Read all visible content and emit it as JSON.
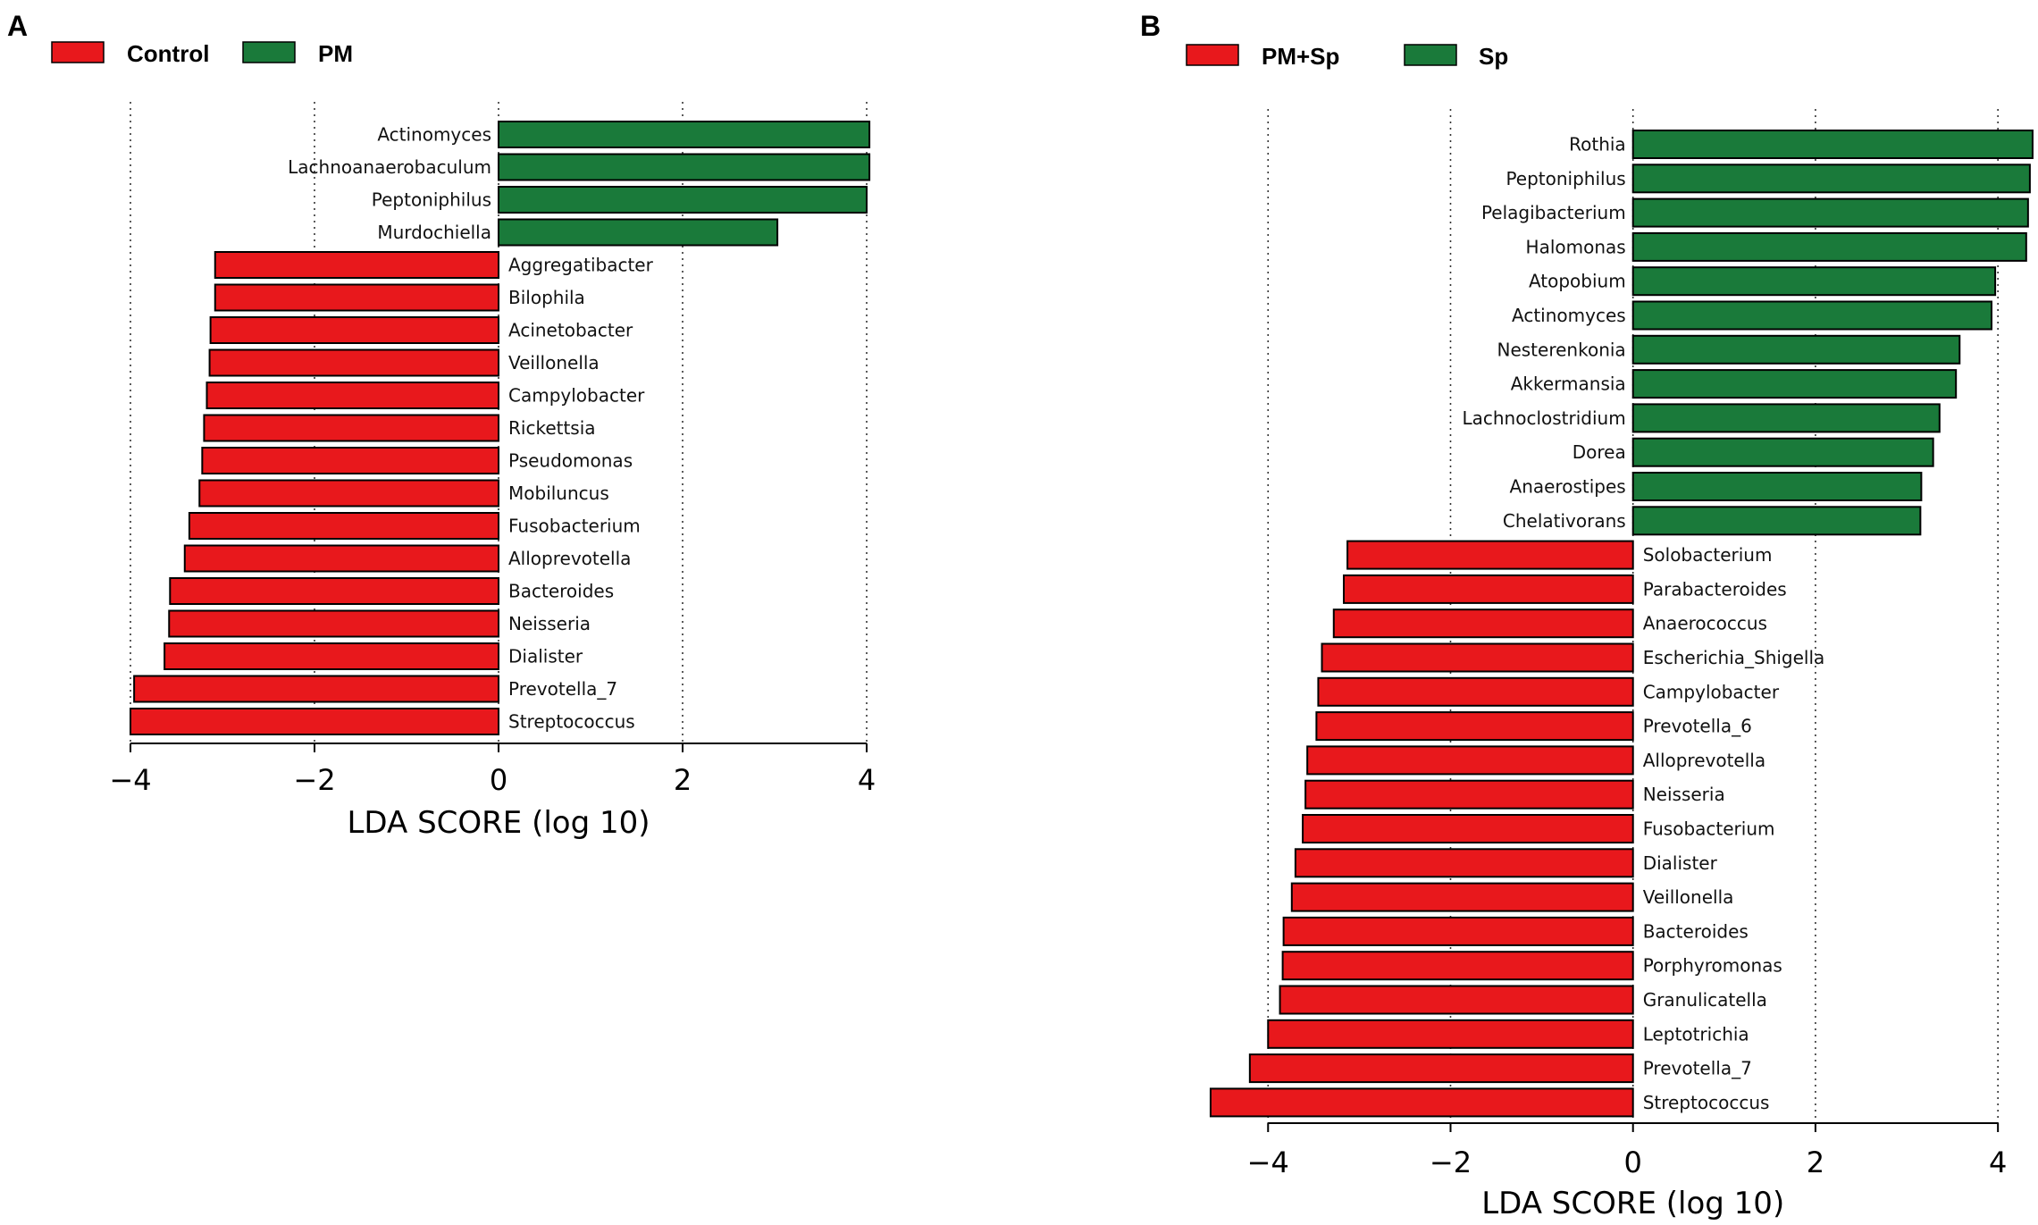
{
  "colors": {
    "red": "#e8181c",
    "green": "#1a7a3a",
    "edge": "#000000"
  },
  "chart_data": [
    {
      "type": "bar",
      "orientation": "horizontal",
      "panel_label": "A",
      "legend": [
        "Control",
        "PM"
      ],
      "series_colors": {
        "Control": "#e8181c",
        "PM": "#1a7a3a"
      },
      "xlabel": "LDA SCORE (log 10)",
      "xlim": [
        -4,
        4
      ],
      "xticks": [
        -4,
        -2,
        0,
        2,
        4
      ],
      "xtick_labels": [
        "−4",
        "−2",
        "0",
        "2",
        "4"
      ],
      "grid": "vertical dotted",
      "bars": [
        {
          "name": "Actinomyces",
          "value": 4.03,
          "group": "PM"
        },
        {
          "name": "Lachnoanaerobaculum",
          "value": 4.03,
          "group": "PM"
        },
        {
          "name": "Peptoniphilus",
          "value": 4.0,
          "group": "PM"
        },
        {
          "name": "Murdochiella",
          "value": 3.03,
          "group": "PM"
        },
        {
          "name": "Aggregatibacter",
          "value": -3.08,
          "group": "Control"
        },
        {
          "name": "Bilophila",
          "value": -3.08,
          "group": "Control"
        },
        {
          "name": "Acinetobacter",
          "value": -3.13,
          "group": "Control"
        },
        {
          "name": "Veillonella",
          "value": -3.14,
          "group": "Control"
        },
        {
          "name": "Campylobacter",
          "value": -3.17,
          "group": "Control"
        },
        {
          "name": "Rickettsia",
          "value": -3.2,
          "group": "Control"
        },
        {
          "name": "Pseudomonas",
          "value": -3.22,
          "group": "Control"
        },
        {
          "name": "Mobiluncus",
          "value": -3.25,
          "group": "Control"
        },
        {
          "name": "Fusobacterium",
          "value": -3.36,
          "group": "Control"
        },
        {
          "name": "Alloprevotella",
          "value": -3.41,
          "group": "Control"
        },
        {
          "name": "Bacteroides",
          "value": -3.57,
          "group": "Control"
        },
        {
          "name": "Neisseria",
          "value": -3.58,
          "group": "Control"
        },
        {
          "name": "Dialister",
          "value": -3.63,
          "group": "Control"
        },
        {
          "name": "Prevotella_7",
          "value": -3.96,
          "group": "Control"
        },
        {
          "name": "Streptococcus",
          "value": -4.0,
          "group": "Control"
        }
      ]
    },
    {
      "type": "bar",
      "orientation": "horizontal",
      "panel_label": "B",
      "legend": [
        "PM+Sp",
        "Sp"
      ],
      "series_colors": {
        "PM+Sp": "#e8181c",
        "Sp": "#1a7a3a"
      },
      "xlabel": "LDA SCORE (log 10)",
      "xlim": [
        -4.6,
        4.4
      ],
      "xticks": [
        -4,
        -2,
        0,
        2,
        4
      ],
      "xtick_labels": [
        "−4",
        "−2",
        "0",
        "2",
        "4"
      ],
      "grid": "vertical dotted",
      "bars": [
        {
          "name": "Rothia",
          "value": 4.38,
          "group": "Sp"
        },
        {
          "name": "Peptoniphilus",
          "value": 4.35,
          "group": "Sp"
        },
        {
          "name": "Pelagibacterium",
          "value": 4.33,
          "group": "Sp"
        },
        {
          "name": "Halomonas",
          "value": 4.31,
          "group": "Sp"
        },
        {
          "name": "Atopobium",
          "value": 3.97,
          "group": "Sp"
        },
        {
          "name": "Actinomyces",
          "value": 3.93,
          "group": "Sp"
        },
        {
          "name": "Nesterenkonia",
          "value": 3.58,
          "group": "Sp"
        },
        {
          "name": "Akkermansia",
          "value": 3.54,
          "group": "Sp"
        },
        {
          "name": "Lachnoclostridium",
          "value": 3.36,
          "group": "Sp"
        },
        {
          "name": "Dorea",
          "value": 3.29,
          "group": "Sp"
        },
        {
          "name": "Anaerostipes",
          "value": 3.16,
          "group": "Sp"
        },
        {
          "name": "Chelativorans",
          "value": 3.15,
          "group": "Sp"
        },
        {
          "name": "Solobacterium",
          "value": -3.13,
          "group": "PM+Sp"
        },
        {
          "name": "Parabacteroides",
          "value": -3.17,
          "group": "PM+Sp"
        },
        {
          "name": "Anaerococcus",
          "value": -3.28,
          "group": "PM+Sp"
        },
        {
          "name": "Escherichia_Shigella",
          "value": -3.41,
          "group": "PM+Sp"
        },
        {
          "name": "Campylobacter",
          "value": -3.45,
          "group": "PM+Sp"
        },
        {
          "name": "Prevotella_6",
          "value": -3.47,
          "group": "PM+Sp"
        },
        {
          "name": "Alloprevotella",
          "value": -3.57,
          "group": "PM+Sp"
        },
        {
          "name": "Neisseria",
          "value": -3.59,
          "group": "PM+Sp"
        },
        {
          "name": "Fusobacterium",
          "value": -3.62,
          "group": "PM+Sp"
        },
        {
          "name": "Dialister",
          "value": -3.7,
          "group": "PM+Sp"
        },
        {
          "name": "Veillonella",
          "value": -3.74,
          "group": "PM+Sp"
        },
        {
          "name": "Bacteroides",
          "value": -3.83,
          "group": "PM+Sp"
        },
        {
          "name": "Porphyromonas",
          "value": -3.84,
          "group": "PM+Sp"
        },
        {
          "name": "Granulicatella",
          "value": -3.87,
          "group": "PM+Sp"
        },
        {
          "name": "Leptotrichia",
          "value": -4.0,
          "group": "PM+Sp"
        },
        {
          "name": "Prevotella_7",
          "value": -4.2,
          "group": "PM+Sp"
        },
        {
          "name": "Streptococcus",
          "value": -4.63,
          "group": "PM+Sp"
        }
      ]
    }
  ]
}
